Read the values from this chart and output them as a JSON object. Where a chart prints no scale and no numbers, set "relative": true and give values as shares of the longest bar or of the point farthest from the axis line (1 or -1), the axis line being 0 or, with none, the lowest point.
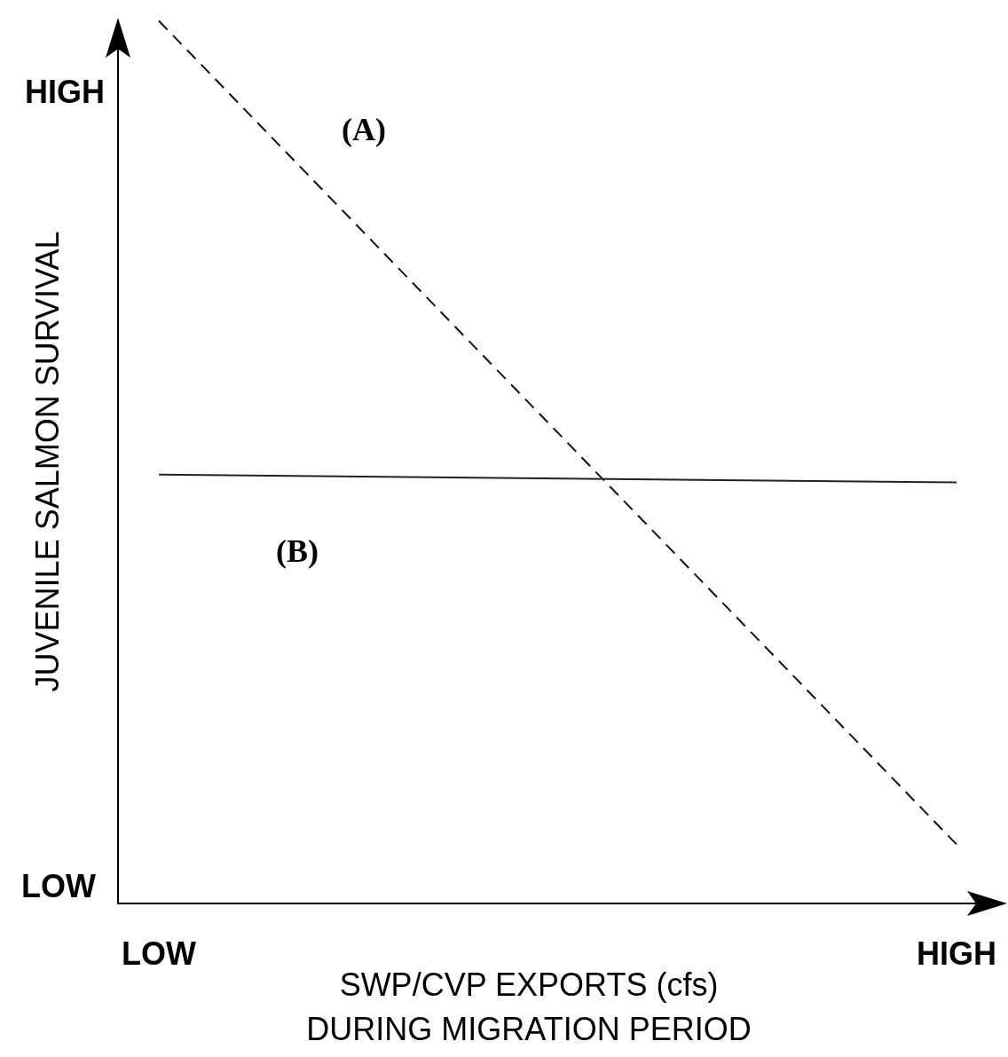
{
  "chart_data": {
    "type": "line",
    "xlabel": "SWP/CVP EXPORTS (cfs)\nDURING MIGRATION PERIOD",
    "ylabel": "JUVENILE SALMON SURVIVAL",
    "relative": true,
    "grid": false,
    "categories": [
      "LOW",
      "HIGH"
    ],
    "series": [
      {
        "color": "#111111",
        "line_style": "dashed",
        "values": [
          1,
          0.067
        ]
      },
      {
        "color": "#222222",
        "line_style": "solid",
        "values": [
          0.486,
          0.477
        ]
      }
    ],
    "annotations": [
      "(A)",
      "(B)",
      "HIGH",
      "LOW"
    ]
  }
}
